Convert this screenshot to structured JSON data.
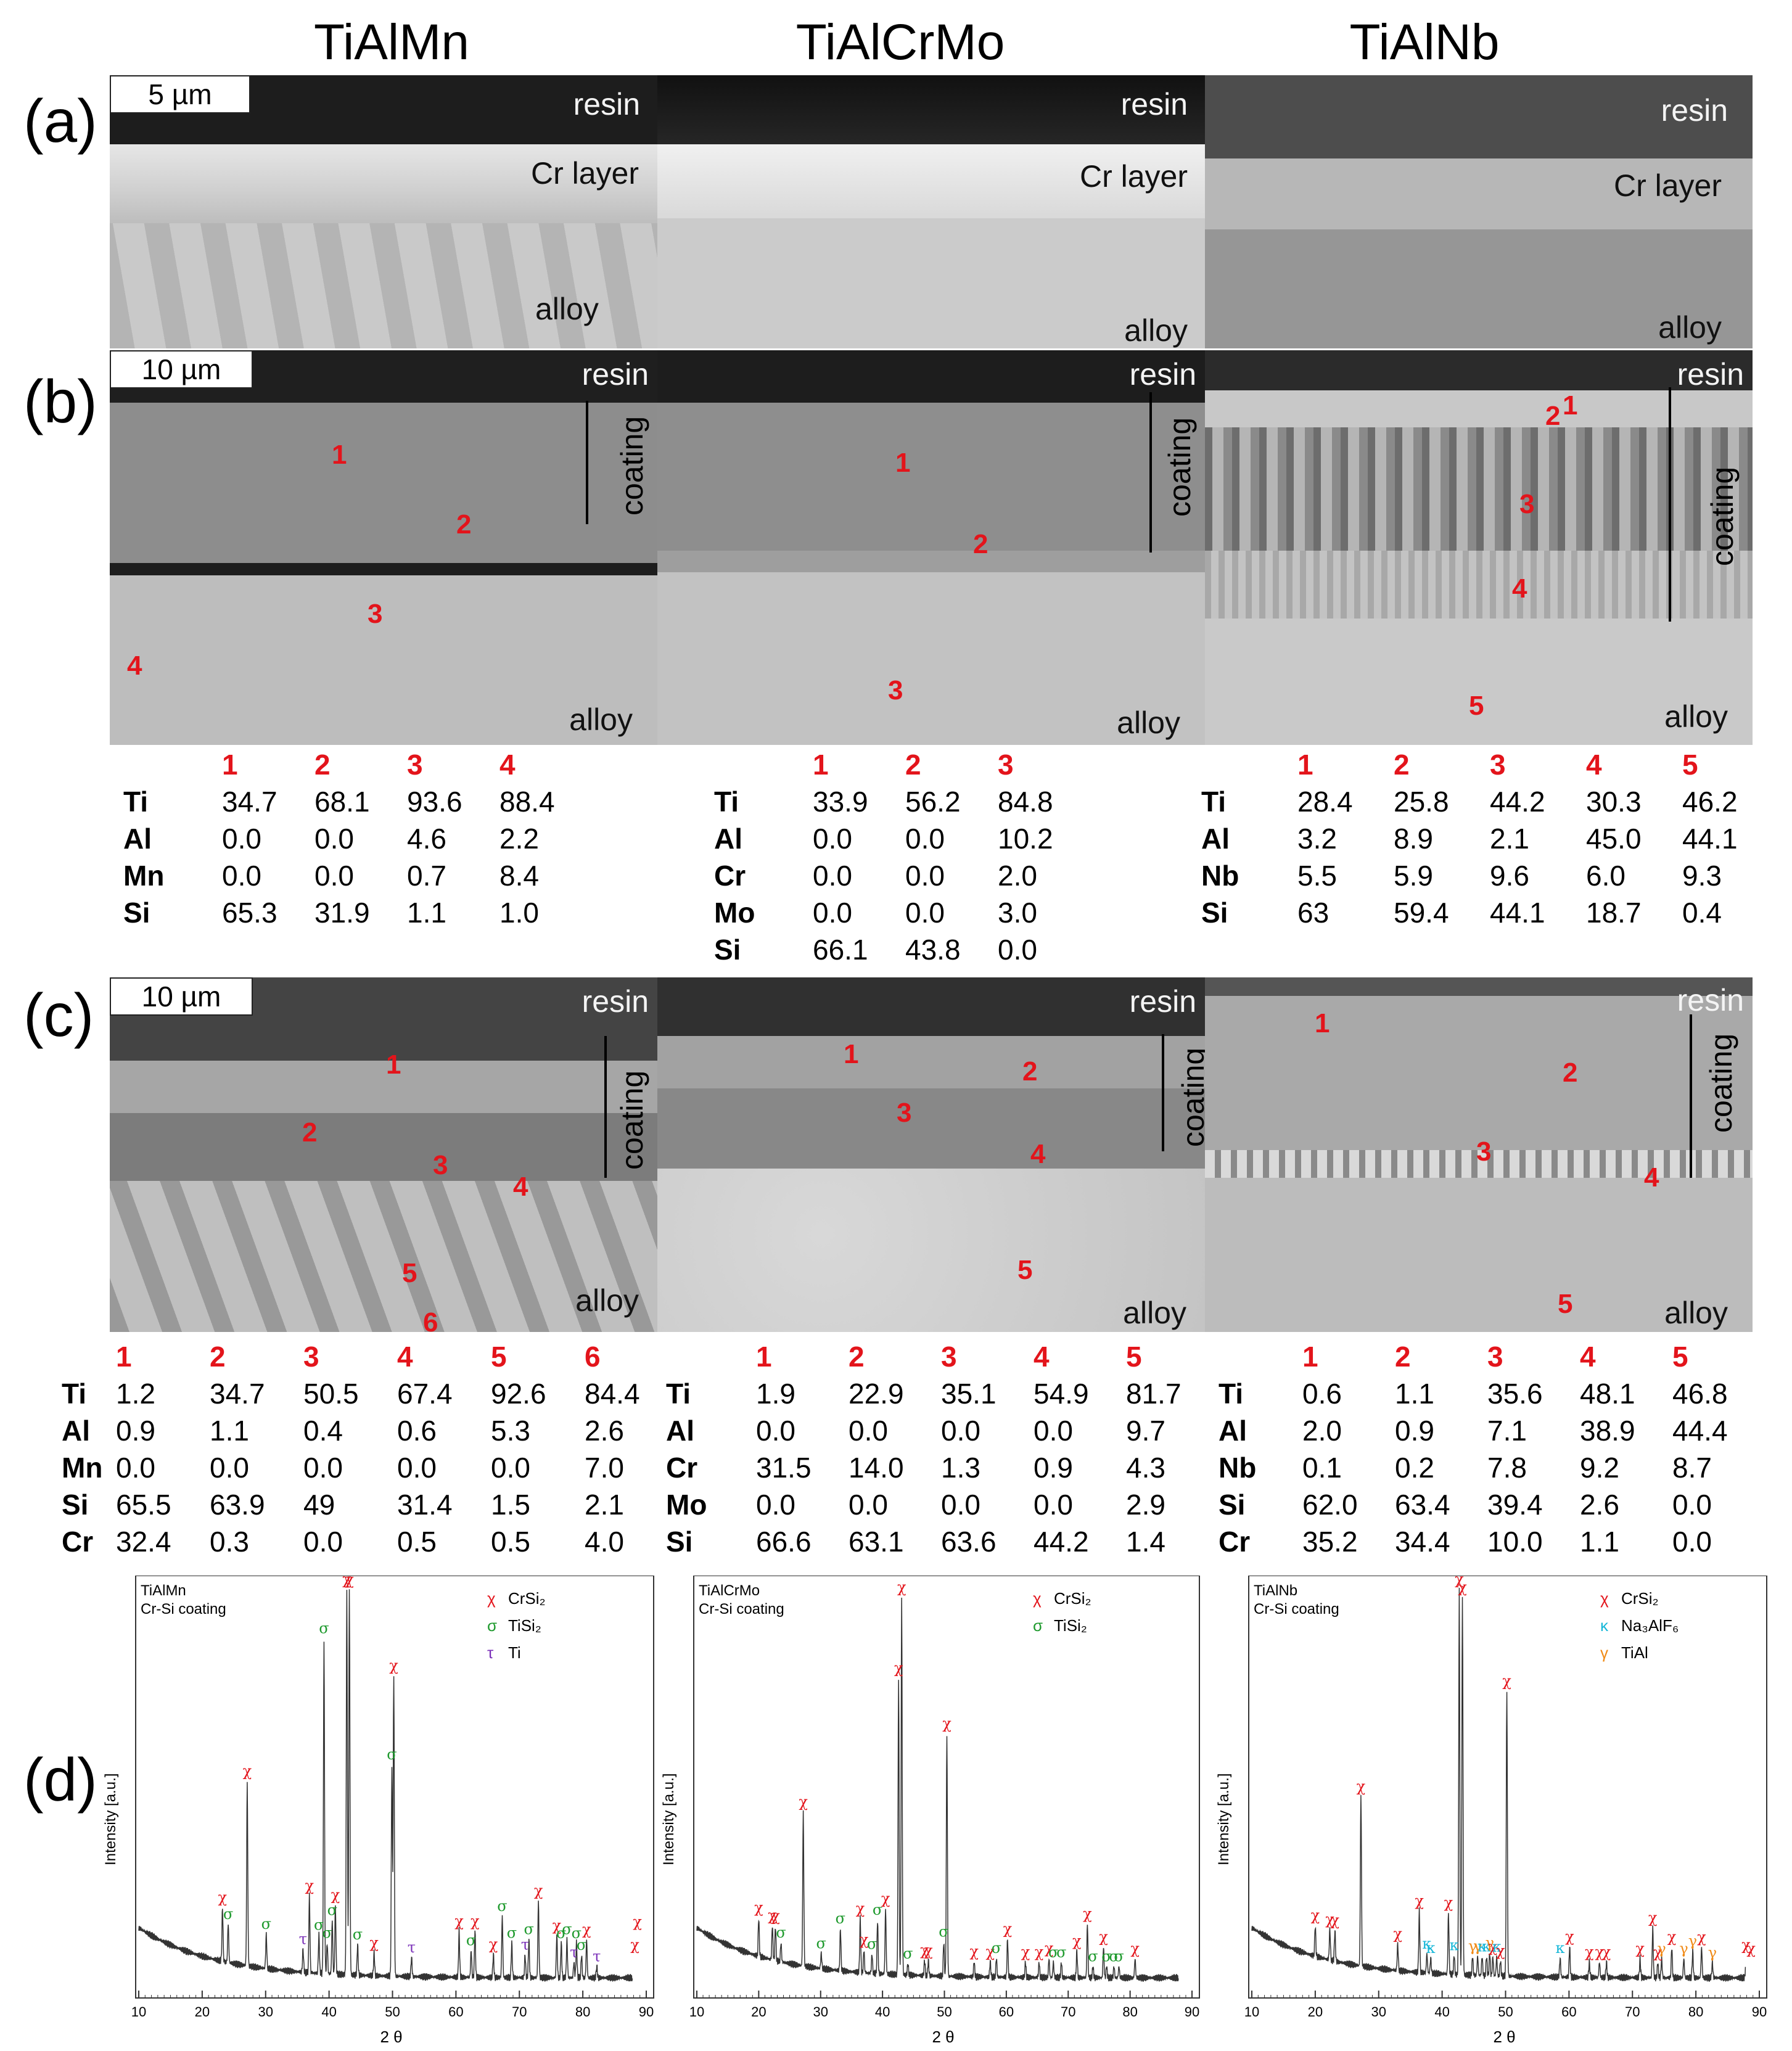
{
  "columns": [
    "TiAlMn",
    "TiAlCrMo",
    "TiAlNb"
  ],
  "row_labels": {
    "a": "(a)",
    "b": "(b)",
    "c": "(c)",
    "d": "(d)"
  },
  "scale_bars": {
    "a": "5 µm",
    "b": "10 µm",
    "c": "10 µm"
  },
  "sem_labels": {
    "resin": "resin",
    "cr_layer": "Cr layer",
    "alloy": "alloy",
    "coating": "coating"
  },
  "points": [
    "1",
    "2",
    "3",
    "4",
    "5",
    "6"
  ],
  "tables_b": [
    {
      "headers": [
        "1",
        "2",
        "3",
        "4"
      ],
      "rows": [
        {
          "el": "Ti",
          "v": [
            "34.7",
            "68.1",
            "93.6",
            "88.4"
          ]
        },
        {
          "el": "Al",
          "v": [
            "0.0",
            "0.0",
            "4.6",
            "2.2"
          ]
        },
        {
          "el": "Mn",
          "v": [
            "0.0",
            "0.0",
            "0.7",
            "8.4"
          ]
        },
        {
          "el": "Si",
          "v": [
            "65.3",
            "31.9",
            "1.1",
            "1.0"
          ]
        }
      ]
    },
    {
      "headers": [
        "1",
        "2",
        "3"
      ],
      "rows": [
        {
          "el": "Ti",
          "v": [
            "33.9",
            "56.2",
            "84.8"
          ]
        },
        {
          "el": "Al",
          "v": [
            "0.0",
            "0.0",
            "10.2"
          ]
        },
        {
          "el": "Cr",
          "v": [
            "0.0",
            "0.0",
            "2.0"
          ]
        },
        {
          "el": "Mo",
          "v": [
            "0.0",
            "0.0",
            "3.0"
          ]
        },
        {
          "el": "Si",
          "v": [
            "66.1",
            "43.8",
            "0.0"
          ]
        }
      ]
    },
    {
      "headers": [
        "1",
        "2",
        "3",
        "4",
        "5"
      ],
      "rows": [
        {
          "el": "Ti",
          "v": [
            "28.4",
            "25.8",
            "44.2",
            "30.3",
            "46.2"
          ]
        },
        {
          "el": "Al",
          "v": [
            "3.2",
            "8.9",
            "2.1",
            "45.0",
            "44.1"
          ]
        },
        {
          "el": "Nb",
          "v": [
            "5.5",
            "5.9",
            "9.6",
            "6.0",
            "9.3"
          ]
        },
        {
          "el": "Si",
          "v": [
            "63",
            "59.4",
            "44.1",
            "18.7",
            "0.4"
          ]
        }
      ]
    }
  ],
  "tables_c": [
    {
      "headers": [
        "1",
        "2",
        "3",
        "4",
        "5",
        "6"
      ],
      "rows": [
        {
          "el": "Ti",
          "v": [
            "1.2",
            "34.7",
            "50.5",
            "67.4",
            "92.6",
            "84.4"
          ]
        },
        {
          "el": "Al",
          "v": [
            "0.9",
            "1.1",
            "0.4",
            "0.6",
            "5.3",
            "2.6"
          ]
        },
        {
          "el": "Mn",
          "v": [
            "0.0",
            "0.0",
            "0.0",
            "0.0",
            "0.0",
            "7.0"
          ]
        },
        {
          "el": "Si",
          "v": [
            "65.5",
            "63.9",
            "49",
            "31.4",
            "1.5",
            "2.1"
          ]
        },
        {
          "el": "Cr",
          "v": [
            "32.4",
            "0.3",
            "0.0",
            "0.5",
            "0.5",
            "4.0"
          ]
        }
      ]
    },
    {
      "headers": [
        "1",
        "2",
        "3",
        "4",
        "5"
      ],
      "rows": [
        {
          "el": "Ti",
          "v": [
            "1.9",
            "22.9",
            "35.1",
            "54.9",
            "81.7"
          ]
        },
        {
          "el": "Al",
          "v": [
            "0.0",
            "0.0",
            "0.0",
            "0.0",
            "9.7"
          ]
        },
        {
          "el": "Cr",
          "v": [
            "31.5",
            "14.0",
            "1.3",
            "0.9",
            "4.3"
          ]
        },
        {
          "el": "Mo",
          "v": [
            "0.0",
            "0.0",
            "0.0",
            "0.0",
            "2.9"
          ]
        },
        {
          "el": "Si",
          "v": [
            "66.6",
            "63.1",
            "63.6",
            "44.2",
            "1.4"
          ]
        }
      ]
    },
    {
      "headers": [
        "1",
        "2",
        "3",
        "4",
        "5"
      ],
      "rows": [
        {
          "el": "Ti",
          "v": [
            "0.6",
            "1.1",
            "35.6",
            "48.1",
            "46.8"
          ]
        },
        {
          "el": "Al",
          "v": [
            "2.0",
            "0.9",
            "7.1",
            "38.9",
            "44.4"
          ]
        },
        {
          "el": "Nb",
          "v": [
            "0.1",
            "0.2",
            "7.8",
            "9.2",
            "8.7"
          ]
        },
        {
          "el": "Si",
          "v": [
            "62.0",
            "63.4",
            "39.4",
            "2.6",
            "0.0"
          ]
        },
        {
          "el": "Cr",
          "v": [
            "35.2",
            "34.4",
            "10.0",
            "1.1",
            "0.0"
          ]
        }
      ]
    }
  ],
  "xrd": {
    "ylabel": "Intensity [a.u.]",
    "xlabel": "2 θ",
    "colors": {
      "chi": "#e3141b",
      "sigma": "#1f9a2e",
      "tau": "#7a2fb8",
      "kappa": "#16b7d8",
      "gamma": "#f08a16"
    },
    "panels": [
      {
        "name1": "TiAlMn",
        "name2": "Cr-Si coating",
        "legend": [
          {
            "sym": "χ",
            "label": "CrSi₂",
            "c": "chi"
          },
          {
            "sym": "σ",
            "label": "TiSi₂",
            "c": "sigma"
          },
          {
            "sym": "τ",
            "label": "Ti",
            "c": "tau"
          }
        ]
      },
      {
        "name1": "TiAlCrMo",
        "name2": "Cr-Si coating",
        "legend": [
          {
            "sym": "χ",
            "label": "CrSi₂",
            "c": "chi"
          },
          {
            "sym": "σ",
            "label": "TiSi₂",
            "c": "sigma"
          }
        ]
      },
      {
        "name1": "TiAlNb",
        "name2": "Cr-Si coating",
        "legend": [
          {
            "sym": "χ",
            "label": "CrSi₂",
            "c": "chi"
          },
          {
            "sym": "κ",
            "label": "Na₃AlF₆",
            "c": "kappa"
          },
          {
            "sym": "γ",
            "label": "TiAl",
            "c": "gamma"
          }
        ]
      }
    ]
  },
  "chart_data": [
    {
      "type": "line",
      "title": "TiAlMn Cr-Si coating",
      "xlabel": "2 θ",
      "ylabel": "Intensity [a.u.]",
      "xlim": [
        10,
        90
      ],
      "x_ticks": [
        10,
        20,
        30,
        40,
        50,
        60,
        70,
        80,
        90
      ],
      "peaks": [
        {
          "x": 23.2,
          "y": 0.14,
          "phase": "χ"
        },
        {
          "x": 24.1,
          "y": 0.1,
          "phase": "σ"
        },
        {
          "x": 27.1,
          "y": 0.48,
          "phase": "χ"
        },
        {
          "x": 30.1,
          "y": 0.09,
          "phase": "σ"
        },
        {
          "x": 35.9,
          "y": 0.06,
          "phase": "τ"
        },
        {
          "x": 36.9,
          "y": 0.2,
          "phase": "χ"
        },
        {
          "x": 38.4,
          "y": 0.1,
          "phase": "σ"
        },
        {
          "x": 39.2,
          "y": 0.87,
          "phase": "σ"
        },
        {
          "x": 39.7,
          "y": 0.08,
          "phase": "σ"
        },
        {
          "x": 40.5,
          "y": 0.14,
          "phase": "σ"
        },
        {
          "x": 41.0,
          "y": 0.18,
          "phase": "χ"
        },
        {
          "x": 42.8,
          "y": 1.0,
          "phase": "χ"
        },
        {
          "x": 43.2,
          "y": 1.0,
          "phase": "χ"
        },
        {
          "x": 44.5,
          "y": 0.08,
          "phase": "σ"
        },
        {
          "x": 47.1,
          "y": 0.06,
          "phase": "χ"
        },
        {
          "x": 49.9,
          "y": 0.55,
          "phase": "σ"
        },
        {
          "x": 50.2,
          "y": 0.78,
          "phase": "χ"
        },
        {
          "x": 53.0,
          "y": 0.05,
          "phase": "τ"
        },
        {
          "x": 60.5,
          "y": 0.12,
          "phase": "χ"
        },
        {
          "x": 62.4,
          "y": 0.07,
          "phase": "σ"
        },
        {
          "x": 63.0,
          "y": 0.12,
          "phase": "χ"
        },
        {
          "x": 65.9,
          "y": 0.06,
          "phase": "χ"
        },
        {
          "x": 67.3,
          "y": 0.16,
          "phase": "σ"
        },
        {
          "x": 68.8,
          "y": 0.09,
          "phase": "σ"
        },
        {
          "x": 70.9,
          "y": 0.06,
          "phase": "τ"
        },
        {
          "x": 71.5,
          "y": 0.1,
          "phase": "σ"
        },
        {
          "x": 73.0,
          "y": 0.2,
          "phase": "χ"
        },
        {
          "x": 75.9,
          "y": 0.11,
          "phase": "χ"
        },
        {
          "x": 76.6,
          "y": 0.09,
          "phase": "σ"
        },
        {
          "x": 77.5,
          "y": 0.1,
          "phase": "σ"
        },
        {
          "x": 78.6,
          "y": 0.04,
          "phase": "τ"
        },
        {
          "x": 79.0,
          "y": 0.09,
          "phase": "σ"
        },
        {
          "x": 79.8,
          "y": 0.06,
          "phase": "σ"
        },
        {
          "x": 80.6,
          "y": 0.1,
          "phase": "χ"
        },
        {
          "x": 82.2,
          "y": 0.03,
          "phase": "τ"
        },
        {
          "x": 88.2,
          "y": 0.06,
          "phase": "χ"
        },
        {
          "x": 88.6,
          "y": 0.12,
          "phase": "χ"
        }
      ]
    },
    {
      "type": "line",
      "title": "TiAlCrMo Cr-Si coating",
      "xlabel": "2 θ",
      "ylabel": "Intensity [a.u.]",
      "xlim": [
        10,
        90
      ],
      "x_ticks": [
        10,
        20,
        30,
        40,
        50,
        60,
        70,
        80,
        90
      ],
      "peaks": [
        {
          "x": 20.0,
          "y": 0.1,
          "phase": "χ"
        },
        {
          "x": 22.2,
          "y": 0.09,
          "phase": "χ"
        },
        {
          "x": 22.7,
          "y": 0.09,
          "phase": "χ"
        },
        {
          "x": 23.6,
          "y": 0.05,
          "phase": "σ"
        },
        {
          "x": 27.2,
          "y": 0.4,
          "phase": "χ"
        },
        {
          "x": 30.1,
          "y": 0.04,
          "phase": "σ"
        },
        {
          "x": 33.2,
          "y": 0.11,
          "phase": "σ"
        },
        {
          "x": 36.4,
          "y": 0.14,
          "phase": "χ"
        },
        {
          "x": 37.0,
          "y": 0.06,
          "phase": "χ"
        },
        {
          "x": 38.3,
          "y": 0.05,
          "phase": "σ"
        },
        {
          "x": 39.2,
          "y": 0.14,
          "phase": "σ"
        },
        {
          "x": 40.5,
          "y": 0.17,
          "phase": "χ"
        },
        {
          "x": 42.6,
          "y": 0.77,
          "phase": "χ"
        },
        {
          "x": 43.1,
          "y": 0.98,
          "phase": "χ"
        },
        {
          "x": 44.1,
          "y": 0.03,
          "phase": "σ"
        },
        {
          "x": 46.8,
          "y": 0.04,
          "phase": "χ"
        },
        {
          "x": 47.4,
          "y": 0.04,
          "phase": "χ"
        },
        {
          "x": 49.9,
          "y": 0.09,
          "phase": "σ"
        },
        {
          "x": 50.4,
          "y": 0.63,
          "phase": "χ"
        },
        {
          "x": 54.8,
          "y": 0.04,
          "phase": "χ"
        },
        {
          "x": 57.4,
          "y": 0.04,
          "phase": "χ"
        },
        {
          "x": 58.4,
          "y": 0.05,
          "phase": "σ"
        },
        {
          "x": 60.2,
          "y": 0.1,
          "phase": "χ"
        },
        {
          "x": 63.1,
          "y": 0.04,
          "phase": "χ"
        },
        {
          "x": 65.3,
          "y": 0.04,
          "phase": "χ"
        },
        {
          "x": 66.9,
          "y": 0.05,
          "phase": "χ"
        },
        {
          "x": 67.6,
          "y": 0.04,
          "phase": "σ"
        },
        {
          "x": 68.9,
          "y": 0.04,
          "phase": "σ"
        },
        {
          "x": 71.4,
          "y": 0.07,
          "phase": "χ"
        },
        {
          "x": 73.1,
          "y": 0.14,
          "phase": "χ"
        },
        {
          "x": 74.0,
          "y": 0.03,
          "phase": "σ"
        },
        {
          "x": 75.7,
          "y": 0.08,
          "phase": "χ"
        },
        {
          "x": 76.2,
          "y": 0.03,
          "phase": "σ"
        },
        {
          "x": 77.4,
          "y": 0.03,
          "phase": "σ"
        },
        {
          "x": 78.2,
          "y": 0.03,
          "phase": "σ"
        },
        {
          "x": 80.8,
          "y": 0.05,
          "phase": "χ"
        }
      ]
    },
    {
      "type": "line",
      "title": "TiAlNb Cr-Si coating",
      "xlabel": "2 θ",
      "ylabel": "Intensity [a.u.]",
      "xlim": [
        10,
        90
      ],
      "x_ticks": [
        10,
        20,
        30,
        40,
        50,
        60,
        70,
        80,
        90
      ],
      "peaks": [
        {
          "x": 20.0,
          "y": 0.08,
          "phase": "χ"
        },
        {
          "x": 22.3,
          "y": 0.08,
          "phase": "χ"
        },
        {
          "x": 23.1,
          "y": 0.08,
          "phase": "χ"
        },
        {
          "x": 27.2,
          "y": 0.44,
          "phase": "χ"
        },
        {
          "x": 33.0,
          "y": 0.07,
          "phase": "χ"
        },
        {
          "x": 36.4,
          "y": 0.16,
          "phase": "χ"
        },
        {
          "x": 37.6,
          "y": 0.05,
          "phase": "κ"
        },
        {
          "x": 38.2,
          "y": 0.04,
          "phase": "κ"
        },
        {
          "x": 41.0,
          "y": 0.16,
          "phase": "χ"
        },
        {
          "x": 41.9,
          "y": 0.05,
          "phase": "κ"
        },
        {
          "x": 42.7,
          "y": 1.0,
          "phase": "χ"
        },
        {
          "x": 43.2,
          "y": 0.98,
          "phase": "χ"
        },
        {
          "x": 44.8,
          "y": 0.05,
          "phase": "γ"
        },
        {
          "x": 45.6,
          "y": 0.05,
          "phase": "γ"
        },
        {
          "x": 46.3,
          "y": 0.05,
          "phase": "κ"
        },
        {
          "x": 47.0,
          "y": 0.05,
          "phase": "κ"
        },
        {
          "x": 47.5,
          "y": 0.06,
          "phase": "γ"
        },
        {
          "x": 48.0,
          "y": 0.05,
          "phase": "χ"
        },
        {
          "x": 48.6,
          "y": 0.05,
          "phase": "κ"
        },
        {
          "x": 49.2,
          "y": 0.04,
          "phase": "χ"
        },
        {
          "x": 50.2,
          "y": 0.74,
          "phase": "χ"
        },
        {
          "x": 58.6,
          "y": 0.05,
          "phase": "κ"
        },
        {
          "x": 60.1,
          "y": 0.08,
          "phase": "χ"
        },
        {
          "x": 63.2,
          "y": 0.04,
          "phase": "χ"
        },
        {
          "x": 64.8,
          "y": 0.04,
          "phase": "χ"
        },
        {
          "x": 65.9,
          "y": 0.04,
          "phase": "χ"
        },
        {
          "x": 71.2,
          "y": 0.05,
          "phase": "χ"
        },
        {
          "x": 73.2,
          "y": 0.13,
          "phase": "χ"
        },
        {
          "x": 74.0,
          "y": 0.04,
          "phase": "χ"
        },
        {
          "x": 74.6,
          "y": 0.05,
          "phase": "γ"
        },
        {
          "x": 76.2,
          "y": 0.08,
          "phase": "χ"
        },
        {
          "x": 78.1,
          "y": 0.05,
          "phase": "γ"
        },
        {
          "x": 79.5,
          "y": 0.07,
          "phase": "γ"
        },
        {
          "x": 80.9,
          "y": 0.08,
          "phase": "χ"
        },
        {
          "x": 82.6,
          "y": 0.04,
          "phase": "γ"
        },
        {
          "x": 87.9,
          "y": 0.06,
          "phase": "χ"
        },
        {
          "x": 88.7,
          "y": 0.05,
          "phase": "χ"
        }
      ]
    }
  ]
}
